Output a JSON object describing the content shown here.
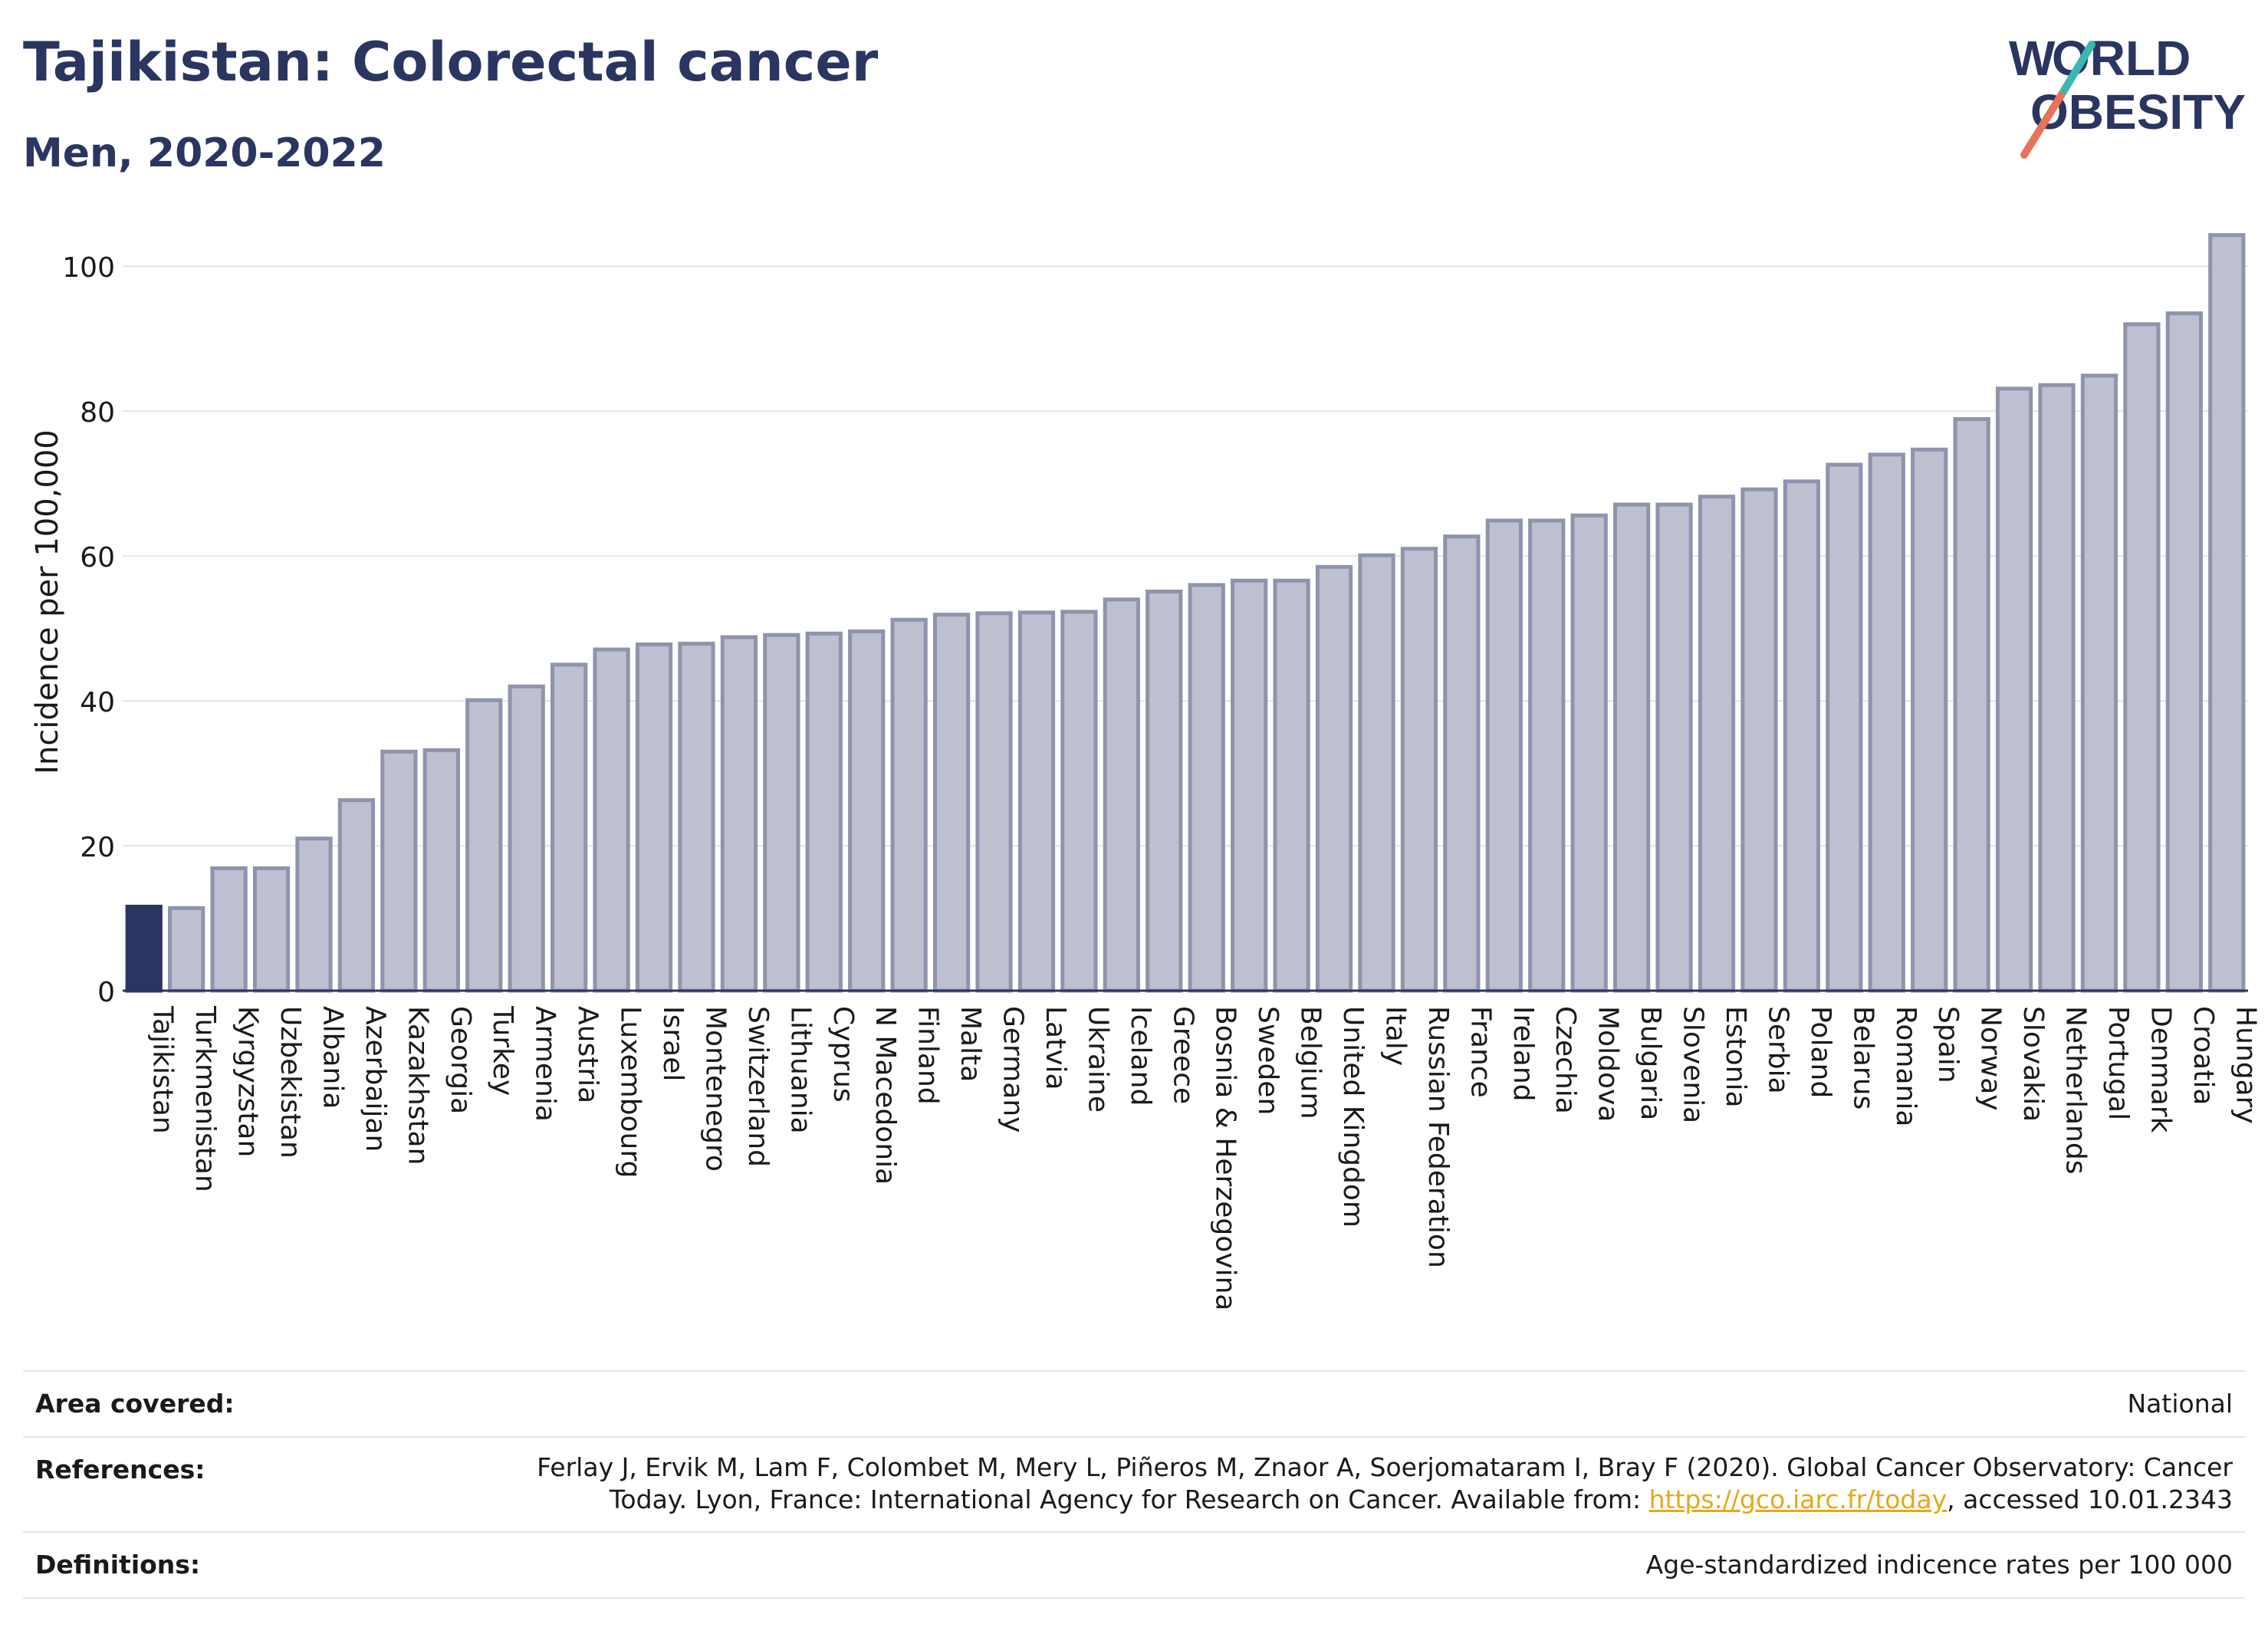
{
  "header": {
    "title": "Tajikistan: Colorectal cancer",
    "subtitle": "Men, 2020-2022",
    "logo_text": "WORLD OBESITY"
  },
  "colors": {
    "highlight": "#2b3561",
    "bar_fill": "#bdc0d0",
    "bar_stroke": "#8f93ab",
    "grid": "#e6e6e6",
    "logo_red": "#e8735a",
    "logo_teal": "#3ab7b0"
  },
  "chart_data": {
    "type": "bar",
    "title": "Tajikistan: Colorectal cancer",
    "subtitle": "Men, 2020-2022",
    "xlabel": "",
    "ylabel": "Incidence per 100,000",
    "ylim": [
      0,
      105
    ],
    "yticks": [
      0,
      20,
      40,
      60,
      80,
      100
    ],
    "grid": true,
    "highlight_category": "Tajikistan",
    "categories": [
      "Tajikistan",
      "Turkmenistan",
      "Kyrgyzstan",
      "Uzbekistan",
      "Albania",
      "Azerbaijan",
      "Kazakhstan",
      "Georgia",
      "Turkey",
      "Armenia",
      "Austria",
      "Luxembourg",
      "Israel",
      "Montenegro",
      "Switzerland",
      "Lithuania",
      "Cyprus",
      "N Macedonia",
      "Finland",
      "Malta",
      "Germany",
      "Latvia",
      "Ukraine",
      "Iceland",
      "Greece",
      "Bosnia & Herzegovina",
      "Sweden",
      "Belgium",
      "United Kingdom",
      "Italy",
      "Russian Federation",
      "France",
      "Ireland",
      "Czechia",
      "Moldova",
      "Bulgaria",
      "Slovenia",
      "Estonia",
      "Serbia",
      "Poland",
      "Belarus",
      "Romania",
      "Spain",
      "Norway",
      "Slovakia",
      "Netherlands",
      "Portugal",
      "Denmark",
      "Croatia",
      "Hungary"
    ],
    "values": [
      11.6,
      11.4,
      16.9,
      16.9,
      21.0,
      26.3,
      33.0,
      33.2,
      40.1,
      42.0,
      45.0,
      47.1,
      47.8,
      47.9,
      48.8,
      49.1,
      49.3,
      49.6,
      51.2,
      51.9,
      52.1,
      52.2,
      52.3,
      54.0,
      55.1,
      56.0,
      56.6,
      56.6,
      58.5,
      60.1,
      61.0,
      62.7,
      64.9,
      64.9,
      65.6,
      67.1,
      67.1,
      68.2,
      69.2,
      70.3,
      72.6,
      74.0,
      74.7,
      78.9,
      83.1,
      83.6,
      84.9,
      92.0,
      93.5,
      104.3
    ]
  },
  "info_table": {
    "area_label": "Area covered:",
    "area_value": "National",
    "ref_label": "References:",
    "ref_line1": "Ferlay J, Ervik M, Lam F, Colombet M, Mery L, Piñeros M, Znaor A, Soerjomataram I, Bray F (2020). Global Cancer Observatory: Cancer",
    "ref_line2_pre": "Today. Lyon, France: International Agency for Research on Cancer. Available from: ",
    "ref_link": "https://gco.iarc.fr/today",
    "ref_line2_post": ", accessed 10.01.2343",
    "def_label": "Definitions:",
    "def_value": "Age-standardized indicence rates per 100 000"
  }
}
